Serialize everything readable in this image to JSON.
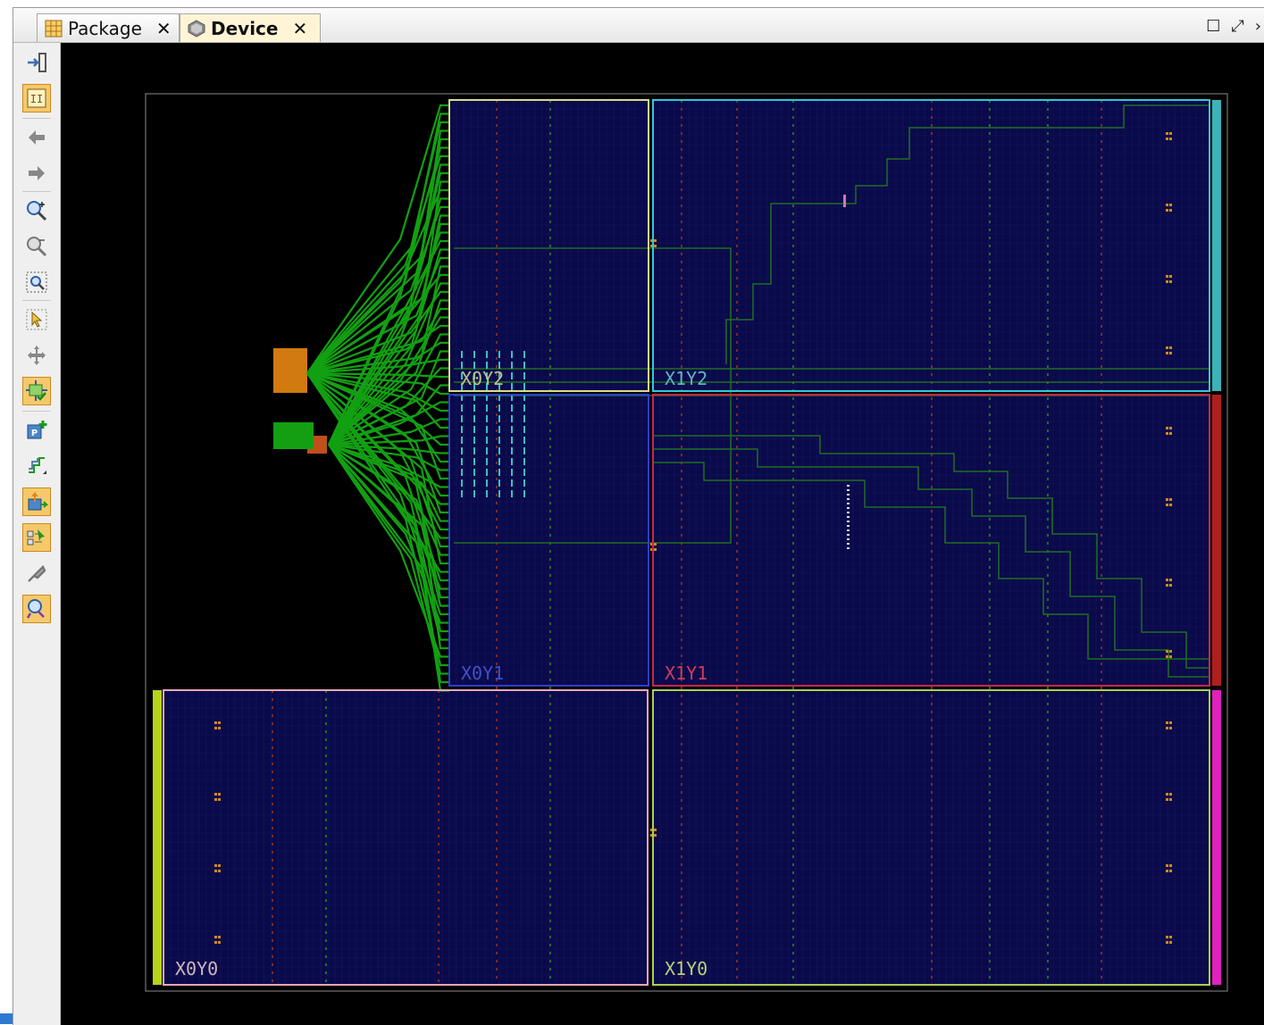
{
  "tabs": [
    {
      "label": "Package",
      "close": "✕",
      "active": false
    },
    {
      "label": "Device",
      "close": "✕",
      "active": true
    }
  ],
  "window_controls": {
    "maximize": "☐",
    "restore": "⤢",
    "more": "›"
  },
  "toolbar": {
    "buttons": [
      {
        "name": "fit-selection-icon",
        "active": false
      },
      {
        "name": "auto-fit-icon",
        "active": true
      },
      {
        "name": "back-arrow-icon",
        "active": false
      },
      {
        "name": "forward-arrow-icon",
        "active": false
      },
      {
        "name": "zoom-in-icon",
        "active": false
      },
      {
        "name": "zoom-out-icon",
        "active": false
      },
      {
        "name": "zoom-fit-icon",
        "active": false
      },
      {
        "name": "select-arrow-icon",
        "active": false
      },
      {
        "name": "move-icon",
        "active": false
      },
      {
        "name": "route-toggle-icon",
        "active": true
      },
      {
        "name": "add-pblock-icon",
        "active": false
      },
      {
        "name": "routing-resources-icon",
        "active": false
      },
      {
        "name": "place-io-icon",
        "active": true
      },
      {
        "name": "autoplace-icon",
        "active": true
      },
      {
        "name": "unplace-icon",
        "active": false
      },
      {
        "name": "highlight-icon",
        "active": true
      }
    ]
  },
  "device": {
    "clock_regions": [
      {
        "id": "X0Y2",
        "label": "X0Y2",
        "color": "#d9d98e",
        "label_color": "#bfbf8a"
      },
      {
        "id": "X1Y2",
        "label": "X1Y2",
        "color": "#33c7d9",
        "label_color": "#5fb6c0"
      },
      {
        "id": "X0Y1",
        "label": "X0Y1",
        "color": "#2b3fd1",
        "label_color": "#4050c8"
      },
      {
        "id": "X1Y1",
        "label": "X1Y1",
        "color": "#c8284a",
        "label_color": "#d23c5a"
      },
      {
        "id": "X0Y0",
        "label": "X0Y0",
        "color": "#e8a6b8",
        "label_color": "#d0b6c0"
      },
      {
        "id": "X1Y0",
        "label": "X1Y0",
        "color": "#a8cf55",
        "label_color": "#b8d07a"
      }
    ],
    "colors": {
      "background": "#000000",
      "fabric": "#0a0a4a",
      "routing_bundle": "#12a012",
      "net": "#1f6e1f",
      "io_block": "#d17a10",
      "bank_x0y0": "#b5d41a",
      "bank_x1y2": "#3bb3b8",
      "bank_x1y1": "#b01e1e",
      "bank_x1y0": "#e020c0"
    }
  }
}
